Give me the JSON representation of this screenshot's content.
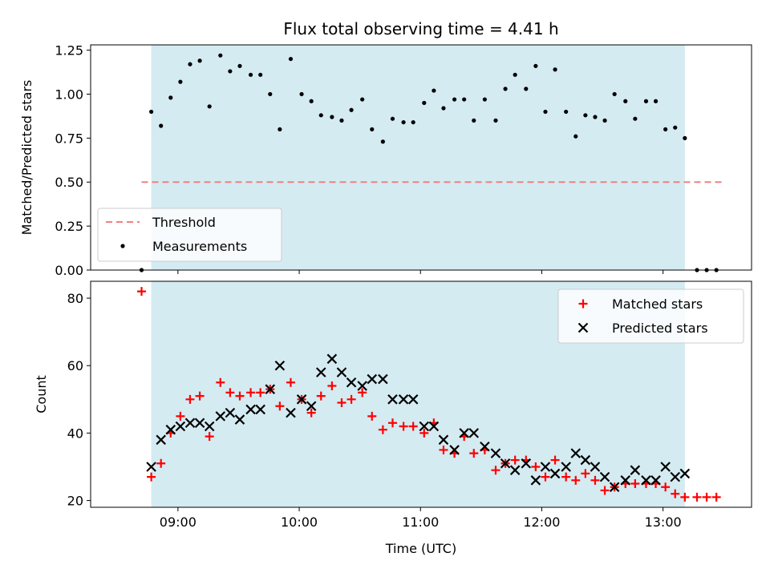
{
  "chart_data": [
    {
      "type": "scatter",
      "title": "Flux total observing time = 4.41 h",
      "xlabel": "",
      "ylabel": "Matched/Predicted stars",
      "xlim": [
        8.28,
        13.73
      ],
      "ylim": [
        0,
        1.28
      ],
      "yticks": [
        0.0,
        0.25,
        0.5,
        0.75,
        1.0,
        1.25
      ],
      "ytick_labels": [
        "0.00",
        "0.25",
        "0.50",
        "0.75",
        "1.00",
        "1.25"
      ],
      "shaded_interval": [
        8.78,
        13.18
      ],
      "shade_color": "#d4ebf2",
      "legend_position": "lower-left",
      "threshold": {
        "name": "Threshold",
        "value": 0.5,
        "x_range": [
          8.7,
          13.5
        ],
        "color": "#f08080"
      },
      "series": [
        {
          "name": "Measurements",
          "color": "#000000",
          "x": [
            8.7,
            8.78,
            8.86,
            8.94,
            9.02,
            9.1,
            9.18,
            9.26,
            9.35,
            9.43,
            9.51,
            9.6,
            9.68,
            9.76,
            9.84,
            9.93,
            10.02,
            10.1,
            10.18,
            10.27,
            10.35,
            10.43,
            10.52,
            10.6,
            10.69,
            10.77,
            10.86,
            10.94,
            11.03,
            11.11,
            11.19,
            11.28,
            11.36,
            11.44,
            11.53,
            11.62,
            11.7,
            11.78,
            11.87,
            11.95,
            12.03,
            12.11,
            12.2,
            12.28,
            12.36,
            12.44,
            12.52,
            12.6,
            12.69,
            12.77,
            12.86,
            12.94,
            13.02,
            13.1,
            13.18,
            13.28,
            13.36,
            13.44
          ],
          "y": [
            0.0,
            0.9,
            0.82,
            0.98,
            1.07,
            1.17,
            1.19,
            0.93,
            1.22,
            1.13,
            1.16,
            1.11,
            1.11,
            1.0,
            0.8,
            1.2,
            1.0,
            0.96,
            0.88,
            0.87,
            0.85,
            0.91,
            0.97,
            0.8,
            0.73,
            0.86,
            0.84,
            0.84,
            0.95,
            1.02,
            0.92,
            0.97,
            0.97,
            0.85,
            0.97,
            0.85,
            1.03,
            1.11,
            1.03,
            1.16,
            0.9,
            1.14,
            0.9,
            0.76,
            0.88,
            0.87,
            0.85,
            1.0,
            0.96,
            0.86,
            0.96,
            0.96,
            0.8,
            0.81,
            0.75,
            0.0,
            0.0,
            0.0
          ]
        }
      ]
    },
    {
      "type": "scatter",
      "title": "",
      "xlabel": "Time (UTC)",
      "ylabel": "Count",
      "xlim": [
        8.28,
        13.73
      ],
      "ylim": [
        18,
        85
      ],
      "yticks": [
        20,
        40,
        60,
        80
      ],
      "ytick_labels": [
        "20",
        "40",
        "60",
        "80"
      ],
      "xticks": [
        9,
        10,
        11,
        12,
        13
      ],
      "xtick_labels": [
        "09:00",
        "10:00",
        "11:00",
        "12:00",
        "13:00"
      ],
      "shaded_interval": [
        8.78,
        13.18
      ],
      "shade_color": "#d4ebf2",
      "legend_position": "upper-right",
      "series": [
        {
          "name": "Matched stars",
          "color": "#ff0000",
          "marker": "plus",
          "x": [
            8.7,
            8.78,
            8.86,
            8.94,
            9.02,
            9.1,
            9.18,
            9.26,
            9.35,
            9.43,
            9.51,
            9.6,
            9.68,
            9.76,
            9.84,
            9.93,
            10.02,
            10.1,
            10.18,
            10.27,
            10.35,
            10.43,
            10.52,
            10.6,
            10.69,
            10.77,
            10.86,
            10.94,
            11.03,
            11.11,
            11.19,
            11.28,
            11.36,
            11.44,
            11.53,
            11.62,
            11.7,
            11.78,
            11.87,
            11.95,
            12.03,
            12.11,
            12.2,
            12.28,
            12.36,
            12.44,
            12.52,
            12.6,
            12.69,
            12.77,
            12.86,
            12.94,
            13.02,
            13.1,
            13.18,
            13.28,
            13.36,
            13.44
          ],
          "y": [
            82,
            27,
            31,
            40,
            45,
            50,
            51,
            39,
            55,
            52,
            51,
            52,
            52,
            53,
            48,
            55,
            50,
            46,
            51,
            54,
            49,
            50,
            52,
            45,
            41,
            43,
            42,
            42,
            40,
            43,
            35,
            34,
            39,
            34,
            35,
            29,
            31,
            32,
            32,
            30,
            27,
            32,
            27,
            26,
            28,
            26,
            23,
            24,
            25,
            25,
            25,
            25,
            24,
            22,
            21,
            21,
            21,
            21
          ]
        },
        {
          "name": "Predicted stars",
          "color": "#000000",
          "marker": "x",
          "x": [
            8.78,
            8.86,
            8.94,
            9.02,
            9.1,
            9.18,
            9.26,
            9.35,
            9.43,
            9.51,
            9.6,
            9.68,
            9.76,
            9.84,
            9.93,
            10.02,
            10.1,
            10.18,
            10.27,
            10.35,
            10.43,
            10.52,
            10.6,
            10.69,
            10.77,
            10.86,
            10.94,
            11.03,
            11.11,
            11.19,
            11.28,
            11.36,
            11.44,
            11.53,
            11.62,
            11.7,
            11.78,
            11.87,
            11.95,
            12.03,
            12.11,
            12.2,
            12.28,
            12.36,
            12.44,
            12.52,
            12.6,
            12.69,
            12.77,
            12.86,
            12.94,
            13.02,
            13.1,
            13.18
          ],
          "y": [
            30,
            38,
            41,
            42,
            43,
            43,
            42,
            45,
            46,
            44,
            47,
            47,
            53,
            60,
            46,
            50,
            48,
            58,
            62,
            58,
            55,
            54,
            56,
            56,
            50,
            50,
            50,
            42,
            42,
            38,
            35,
            40,
            40,
            36,
            34,
            31,
            29,
            31,
            26,
            30,
            28,
            30,
            34,
            32,
            30,
            27,
            24,
            26,
            29,
            26,
            26,
            30,
            27,
            28
          ]
        }
      ]
    }
  ]
}
